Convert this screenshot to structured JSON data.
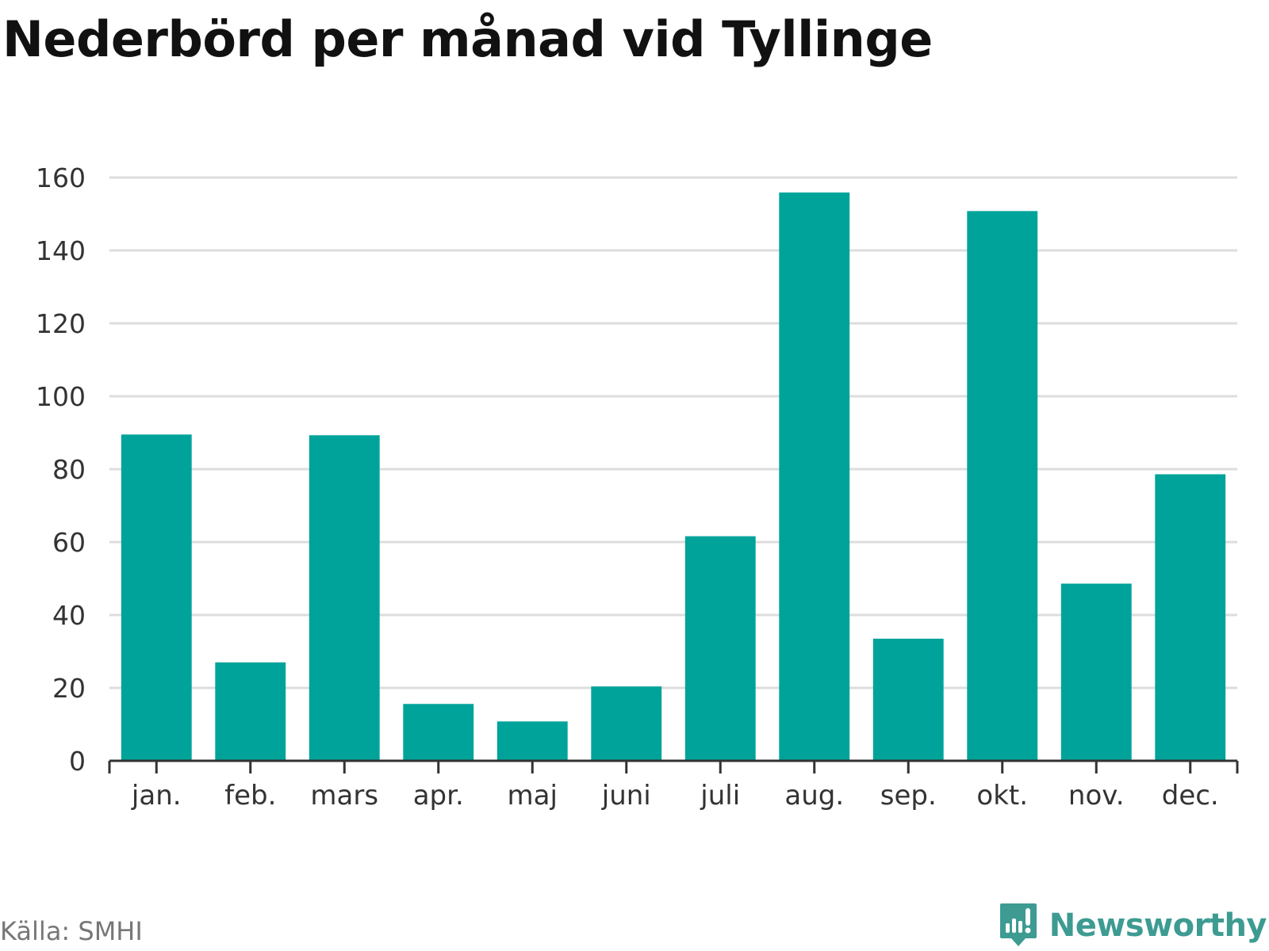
{
  "colors": {
    "bar": "#00a39a",
    "grid": "#dddddd",
    "axis": "#333333",
    "brand": "#3d9b92",
    "source_text": "#777777"
  },
  "chart_data": {
    "type": "bar",
    "title": "Nederbörd per månad vid Tyllinge",
    "xlabel": "",
    "ylabel": "",
    "categories": [
      "jan.",
      "feb.",
      "mars",
      "apr.",
      "maj",
      "juni",
      "juli",
      "aug.",
      "sep.",
      "okt.",
      "nov.",
      "dec."
    ],
    "values": [
      89.5,
      27,
      89.3,
      15.6,
      10.8,
      20.4,
      61.6,
      155.9,
      33.5,
      150.8,
      48.6,
      78.6
    ],
    "ylim": [
      0,
      160
    ],
    "yticks": [
      "0",
      "20",
      "40",
      "60",
      "80",
      "100",
      "120",
      "140",
      "160"
    ],
    "grid": true,
    "legend": "none"
  },
  "footer": {
    "source": "Källa: SMHI",
    "brand": "Newsworthy",
    "logo_icon": "newsworthy-logo-icon"
  }
}
